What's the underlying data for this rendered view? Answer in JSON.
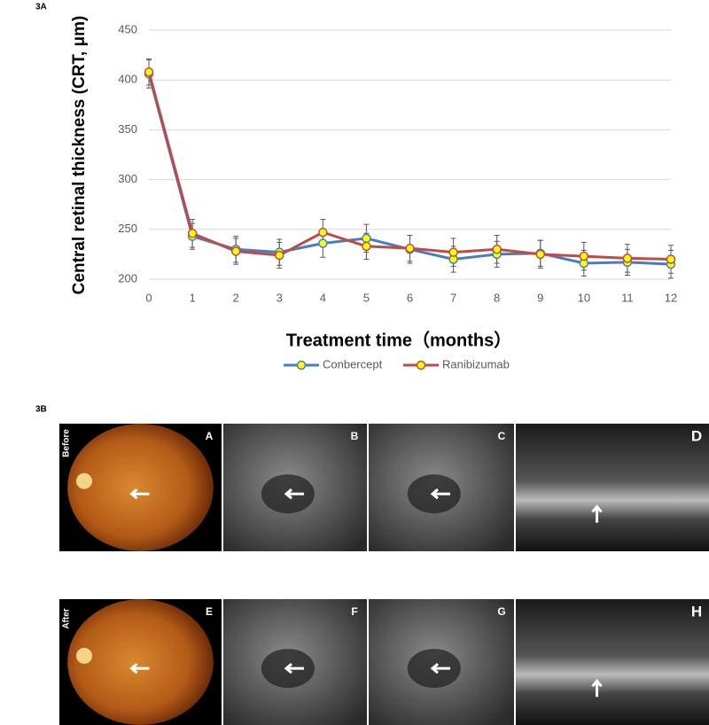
{
  "chart_data": {
    "type": "line",
    "y_label": "Central retinal thickness (CRT, μm)",
    "x_label": "Treatment time（months）",
    "x": [
      0,
      1,
      2,
      3,
      4,
      5,
      6,
      7,
      8,
      9,
      10,
      11,
      12
    ],
    "xlim": [
      0,
      12
    ],
    "xticks": [
      0,
      1,
      2,
      3,
      4,
      5,
      6,
      7,
      8,
      9,
      10,
      11,
      12
    ],
    "ylim": [
      200,
      450
    ],
    "yticks": [
      200,
      250,
      300,
      350,
      400,
      450
    ],
    "grid": true,
    "series": [
      {
        "name": "Conbercept",
        "color": "#4a7ebb",
        "values": [
          406,
          243,
          230,
          227,
          236,
          241,
          230,
          220,
          225,
          226,
          216,
          217,
          215
        ],
        "errors": [
          14,
          13,
          13,
          13,
          14,
          14,
          14,
          13,
          13,
          13,
          13,
          13,
          14
        ]
      },
      {
        "name": "Ranibizumab",
        "color": "#be4b48",
        "values": [
          408,
          246,
          228,
          224,
          247,
          233,
          231,
          227,
          230,
          225,
          223,
          221,
          220
        ],
        "errors": [
          13,
          14,
          13,
          13,
          13,
          13,
          13,
          14,
          14,
          14,
          14,
          14,
          14
        ]
      }
    ],
    "marker_color": "#ffff00"
  },
  "figure": {
    "chart_label": "3A",
    "images_label": "3B",
    "rows": [
      {
        "label": "Before",
        "panels": [
          "A",
          "B",
          "C",
          "D"
        ]
      },
      {
        "label": "After",
        "panels": [
          "E",
          "F",
          "G",
          "H"
        ]
      }
    ]
  }
}
